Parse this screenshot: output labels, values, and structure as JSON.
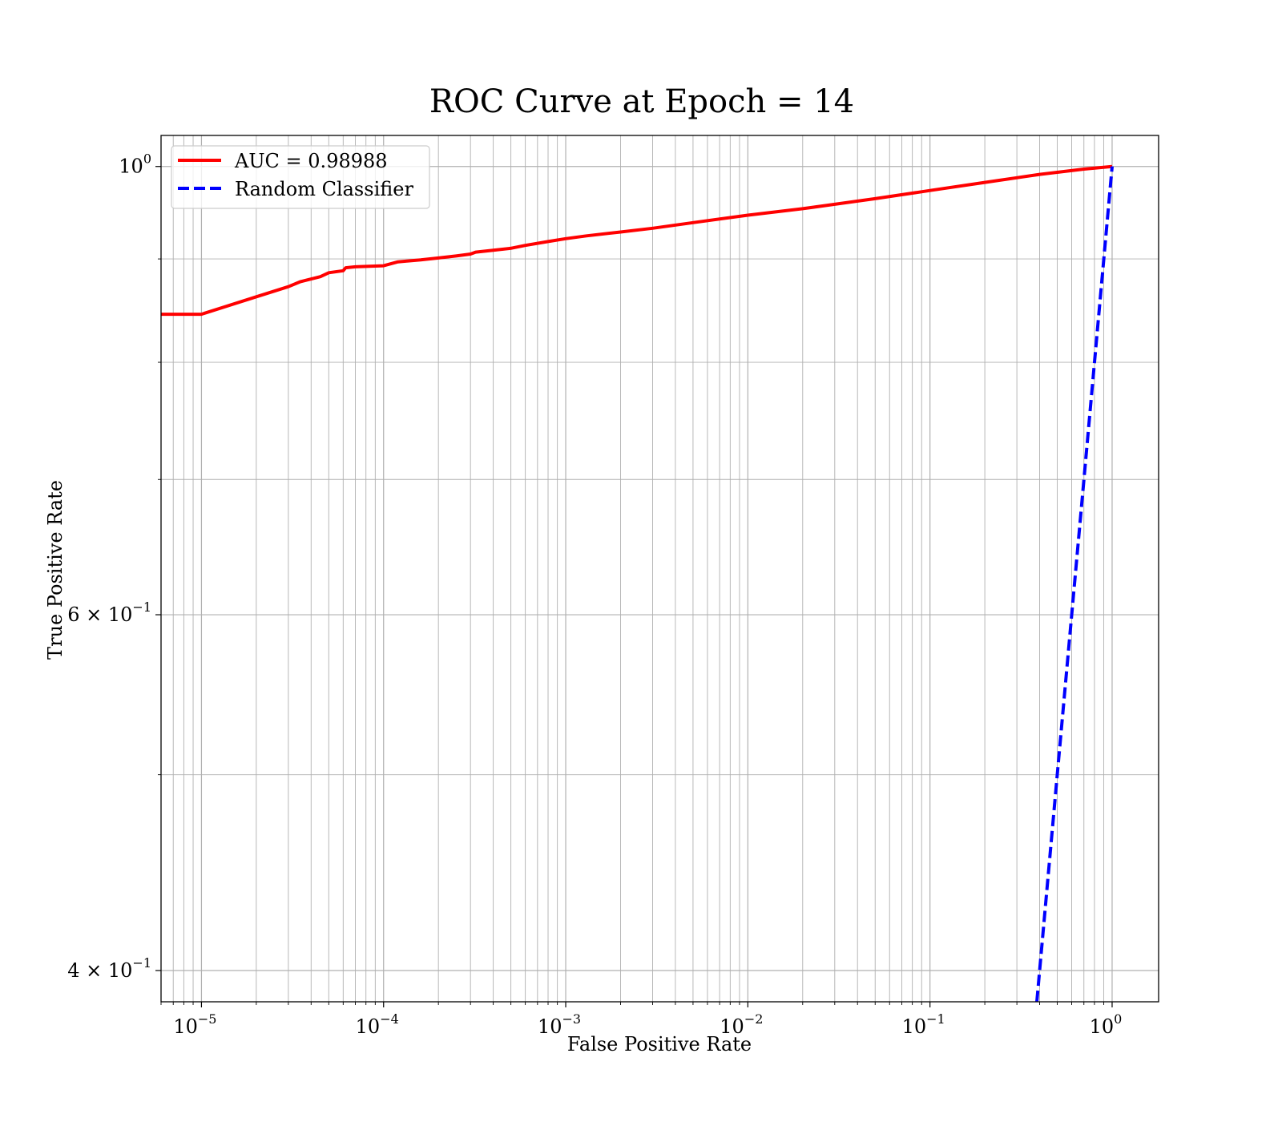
{
  "chart_data": {
    "type": "line",
    "title": "ROC Curve at Epoch = 14",
    "xlabel": "False Positive Rate",
    "ylabel": "True Positive Rate",
    "xscale": "log",
    "yscale": "log",
    "xlim": [
      6e-06,
      1.8
    ],
    "ylim": [
      0.386,
      1.036
    ],
    "grid": true,
    "grid_minor": true,
    "legend_position": "upper-left",
    "x_ticks": [
      {
        "value": 1e-05,
        "base": "10",
        "exp": "−5"
      },
      {
        "value": 0.0001,
        "base": "10",
        "exp": "−4"
      },
      {
        "value": 0.001,
        "base": "10",
        "exp": "−3"
      },
      {
        "value": 0.01,
        "base": "10",
        "exp": "−2"
      },
      {
        "value": 0.1,
        "base": "10",
        "exp": "−1"
      },
      {
        "value": 1,
        "base": "10",
        "exp": "0"
      }
    ],
    "y_ticks": [
      {
        "value": 1.0,
        "base": "10",
        "exp": "0",
        "mantissa": ""
      },
      {
        "value": 0.6,
        "base": "10",
        "exp": "−1",
        "mantissa": "6 × "
      },
      {
        "value": 0.4,
        "base": "10",
        "exp": "−1",
        "mantissa": "4 × "
      }
    ],
    "series": [
      {
        "name": "AUC = 0.98988",
        "color": "#ff0000",
        "style": "solid",
        "x": [
          6e-06,
          1e-05,
          2e-05,
          3e-05,
          3.5e-05,
          4.5e-05,
          5e-05,
          6e-05,
          6.2e-05,
          7e-05,
          0.0001,
          0.00012,
          0.00016,
          0.0002,
          0.00025,
          0.0003,
          0.00032,
          0.0004,
          0.0005,
          0.0006,
          0.0008,
          0.001,
          0.0013,
          0.002,
          0.003,
          0.005,
          0.01,
          0.02,
          0.05,
          0.1,
          0.2,
          0.4,
          0.7,
          1.0
        ],
        "y": [
          0.845,
          0.845,
          0.862,
          0.872,
          0.877,
          0.882,
          0.886,
          0.888,
          0.891,
          0.892,
          0.893,
          0.897,
          0.899,
          0.901,
          0.903,
          0.905,
          0.907,
          0.909,
          0.911,
          0.914,
          0.918,
          0.921,
          0.924,
          0.928,
          0.932,
          0.938,
          0.946,
          0.953,
          0.964,
          0.973,
          0.982,
          0.991,
          0.997,
          1.0
        ]
      },
      {
        "name": "Random Classifier",
        "color": "#0000ff",
        "style": "dashed",
        "x": [
          0.386,
          0.5,
          0.7,
          1.0
        ],
        "y": [
          0.386,
          0.5,
          0.7,
          1.0
        ]
      }
    ]
  }
}
